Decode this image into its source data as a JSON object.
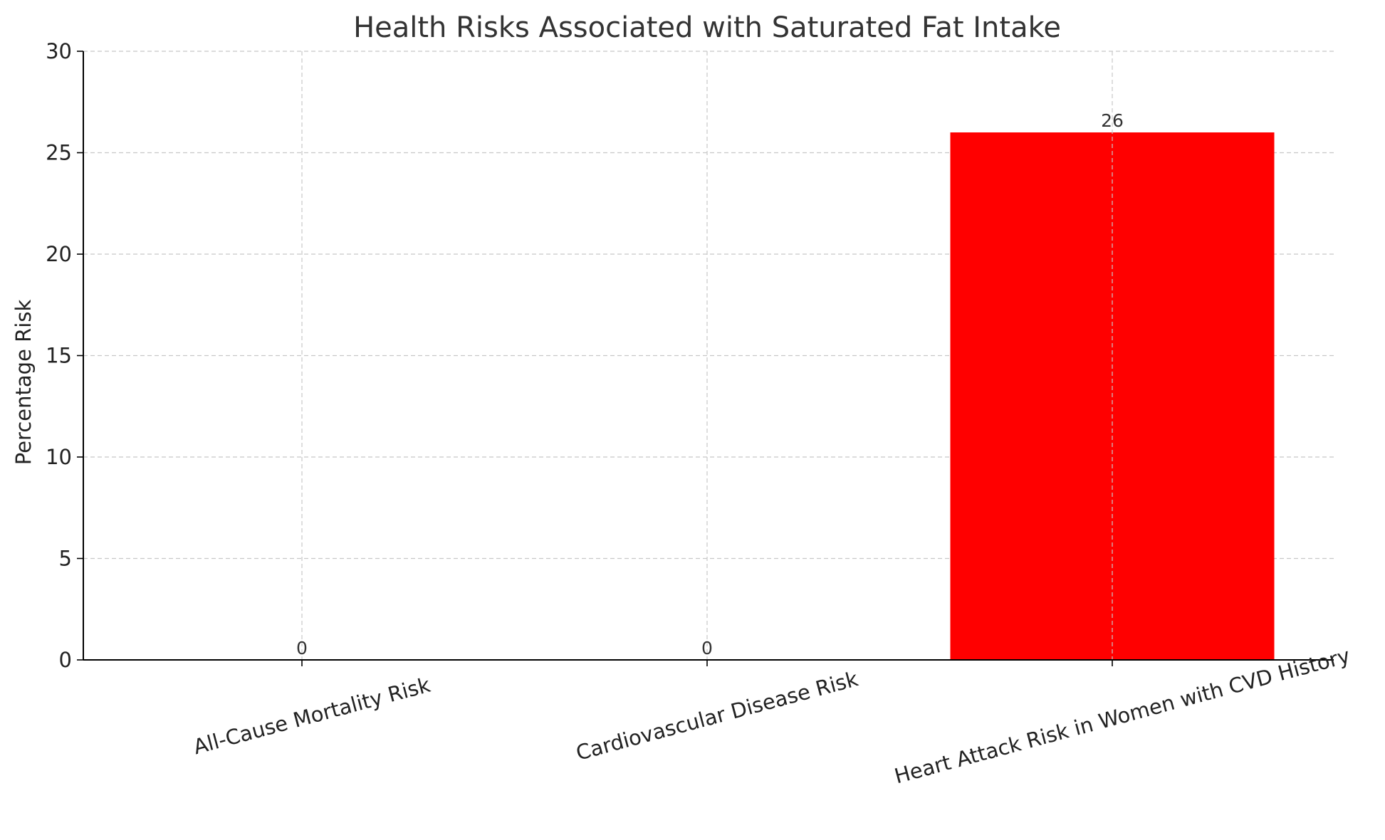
{
  "chart_data": {
    "type": "bar",
    "title": "Health Risks Associated with Saturated Fat Intake",
    "xlabel": "",
    "ylabel": "Percentage Risk",
    "categories": [
      "All-Cause Mortality Risk",
      "Cardiovascular Disease Risk",
      "Heart Attack Risk in Women with CVD History"
    ],
    "values": [
      0,
      0,
      26
    ],
    "data_labels": [
      "0",
      "0",
      "26"
    ],
    "ylim": [
      0,
      30
    ],
    "yticks": [
      0,
      5,
      10,
      15,
      20,
      25,
      30
    ],
    "ytick_labels": [
      "0",
      "5",
      "10",
      "15",
      "20",
      "25",
      "30"
    ],
    "grid": true,
    "bar_color": "#ff0000",
    "legend": "none"
  }
}
